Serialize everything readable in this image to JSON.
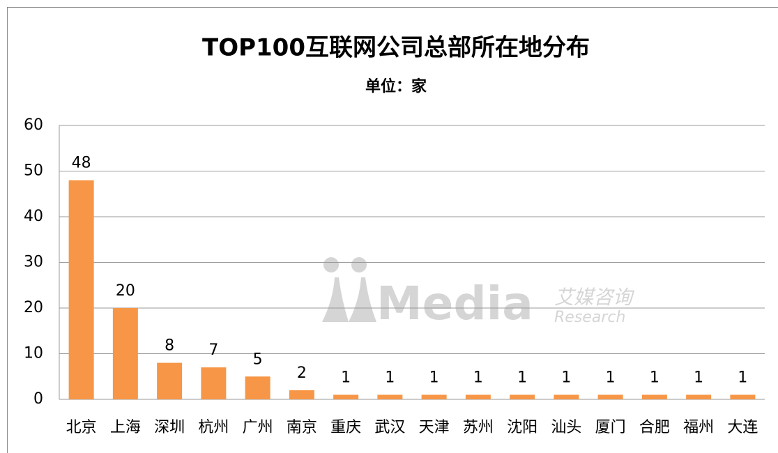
{
  "chart_data": {
    "type": "bar",
    "title": "TOP100互联网公司总部所在地分布",
    "subtitle": "单位：家",
    "categories": [
      "北京",
      "上海",
      "深圳",
      "杭州",
      "广州",
      "南京",
      "重庆",
      "武汉",
      "天津",
      "苏州",
      "沈阳",
      "汕头",
      "厦门",
      "合肥",
      "福州",
      "大连"
    ],
    "values": [
      48,
      20,
      8,
      7,
      5,
      2,
      1,
      1,
      1,
      1,
      1,
      1,
      1,
      1,
      1,
      1
    ],
    "color": "#f79646",
    "ylim": [
      0,
      60
    ],
    "yticks": [
      0,
      10,
      20,
      30,
      40,
      50,
      60
    ],
    "grid": true,
    "watermark": {
      "brand": "Media",
      "cn": "艾媒咨询",
      "en": "Research"
    }
  }
}
